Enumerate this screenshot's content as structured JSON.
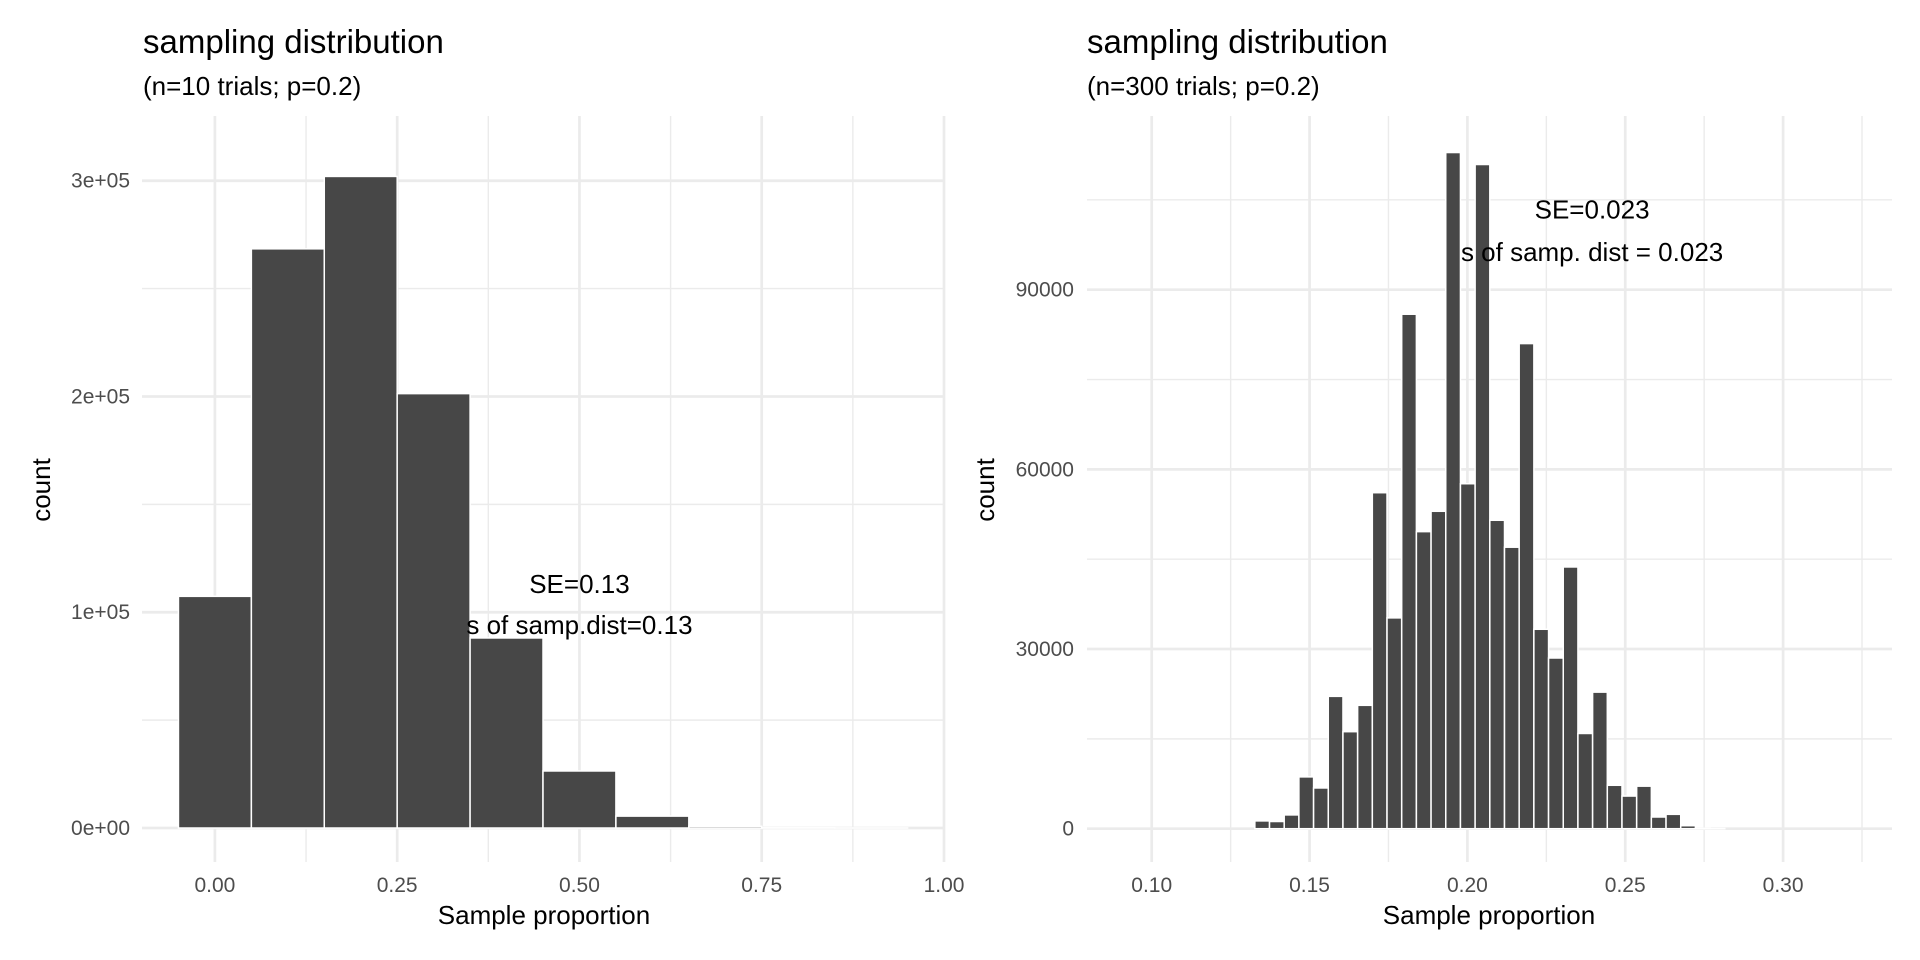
{
  "chart_data": [
    {
      "type": "bar",
      "title": "sampling distribution",
      "subtitle": "(n=10 trials; p=0.2)",
      "xlabel": "Sample proportion",
      "ylabel": "count",
      "bin_width": 0.1,
      "x": [
        0.0,
        0.1,
        0.2,
        0.3,
        0.4,
        0.5,
        0.6,
        0.7,
        0.8,
        0.9,
        1.0
      ],
      "values": [
        107374,
        268435,
        301990,
        201327,
        88080,
        26424,
        5505,
        786,
        74,
        4,
        0
      ],
      "xlim": [
        -0.1,
        1.0
      ],
      "ylim": [
        0,
        330000
      ],
      "x_ticks": [
        0.0,
        0.25,
        0.5,
        0.75,
        1.0
      ],
      "x_tick_labels": [
        "0.00",
        "0.25",
        "0.50",
        "0.75",
        "1.00"
      ],
      "x_minor_ticks": [
        0.125,
        0.375,
        0.625,
        0.875
      ],
      "y_ticks": [
        0,
        100000,
        200000,
        300000
      ],
      "y_tick_labels": [
        "0e+00",
        "1e+05",
        "2e+05",
        "3e+05"
      ],
      "y_minor_ticks": [
        50000,
        150000,
        250000
      ],
      "annotations": [
        {
          "text": "SE=0.13",
          "x": 0.5,
          "y": 109000
        },
        {
          "text": "s of samp.dist=0.13",
          "x": 0.5,
          "y": 90000
        }
      ],
      "grid": true,
      "legend": "none"
    },
    {
      "type": "bar",
      "title": "sampling distribution",
      "subtitle": "(n=300 trials; p=0.2)",
      "xlabel": "Sample proportion",
      "ylabel": "count",
      "bin_start": 0.0908,
      "bin_width": 0.004652,
      "bin_count": 50,
      "values": [
        0,
        0,
        0,
        0,
        0,
        0,
        0,
        0,
        0,
        1300,
        1200,
        2300,
        8650,
        6800,
        22100,
        16200,
        20600,
        56100,
        35200,
        85900,
        49600,
        53000,
        112900,
        57600,
        110900,
        51500,
        47000,
        81000,
        33300,
        28500,
        43700,
        15900,
        22800,
        7250,
        5450,
        7100,
        1950,
        2400,
        500,
        60,
        20,
        0,
        0,
        0,
        0,
        0,
        0,
        0,
        0,
        0
      ],
      "xlim": [
        0.0795,
        0.3345
      ],
      "ylim": [
        0,
        119000
      ],
      "x_ticks": [
        0.1,
        0.15,
        0.2,
        0.25,
        0.3
      ],
      "x_tick_labels": [
        "0.10",
        "0.15",
        "0.20",
        "0.25",
        "0.30"
      ],
      "x_minor_ticks": [
        0.125,
        0.175,
        0.225,
        0.275,
        0.325
      ],
      "y_ticks": [
        0,
        30000,
        60000,
        90000
      ],
      "y_tick_labels": [
        "0",
        "30000",
        "60000",
        "90000"
      ],
      "y_minor_ticks": [
        15000,
        45000,
        75000,
        105000
      ],
      "annotations": [
        {
          "text": "SE=0.023",
          "x": 0.2395,
          "y": 101900
        },
        {
          "text": "s of samp. dist = 0.023",
          "x": 0.2395,
          "y": 94800
        }
      ],
      "grid": true,
      "legend": "none"
    }
  ]
}
